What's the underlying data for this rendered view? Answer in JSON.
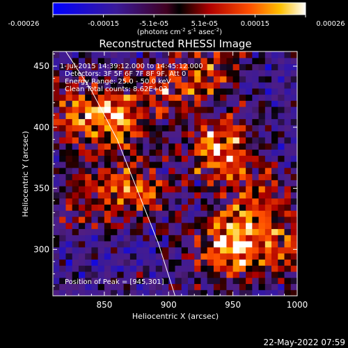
{
  "chart_data": {
    "type": "heatmap",
    "title": "Reconstructed RHESSI Image",
    "xlabel": "Heliocentric X (arcsec)",
    "ylabel": "Heliocentric Y (arcsec)",
    "xlim": [
      810,
      1000
    ],
    "ylim": [
      262,
      462
    ],
    "xticks": [
      850,
      900,
      950,
      1000
    ],
    "yticks": [
      300,
      350,
      400,
      450
    ],
    "colorbar": {
      "ticks": [
        "-0.00026",
        "-0.00015",
        "-5.1e-05",
        "5.1e-05",
        "0.00015",
        "0.00026"
      ],
      "unit_text": "(photons cm",
      "unit_sup1": "-2",
      "unit_mid": " s",
      "unit_sup2": "-1",
      "unit_end": " asec",
      "unit_sup3": "-2",
      "unit_close": ")",
      "min": -0.00026,
      "max": 0.00026
    },
    "annotations": [
      "1-Jul-2015 14:39:12.000 to 14:45:12.000",
      "Detectors: 3F 5F 6F 7F 8F 9F, Att 0",
      "Energy Range: 25.0 - 50.0 keV",
      "Clean    Total counts: 8.62E+03"
    ],
    "peak_label": "Position of Peak = [945,301]",
    "peak": [
      945,
      301
    ],
    "bright_regions": [
      {
        "x": 945,
        "y": 301,
        "value": 0.00026
      },
      {
        "x": 940,
        "y": 380,
        "value": 0.00022
      },
      {
        "x": 830,
        "y": 410,
        "value": 0.00018
      },
      {
        "x": 860,
        "y": 405,
        "value": 0.00017
      },
      {
        "x": 870,
        "y": 345,
        "value": 0.00018
      },
      {
        "x": 900,
        "y": 430,
        "value": 0.00012
      },
      {
        "x": 985,
        "y": 300,
        "value": 0.00014
      },
      {
        "x": 965,
        "y": 340,
        "value": 0.00012
      },
      {
        "x": 830,
        "y": 340,
        "value": 0.0001
      },
      {
        "x": 930,
        "y": 445,
        "value": 0.00011
      }
    ],
    "limb_curve": [
      [
        820,
        462
      ],
      [
        840,
        430
      ],
      [
        860,
        390
      ],
      [
        877,
        345
      ],
      [
        892,
        305
      ],
      [
        905,
        262
      ]
    ]
  },
  "footer": {
    "date": "22-May-2022 07:59"
  }
}
